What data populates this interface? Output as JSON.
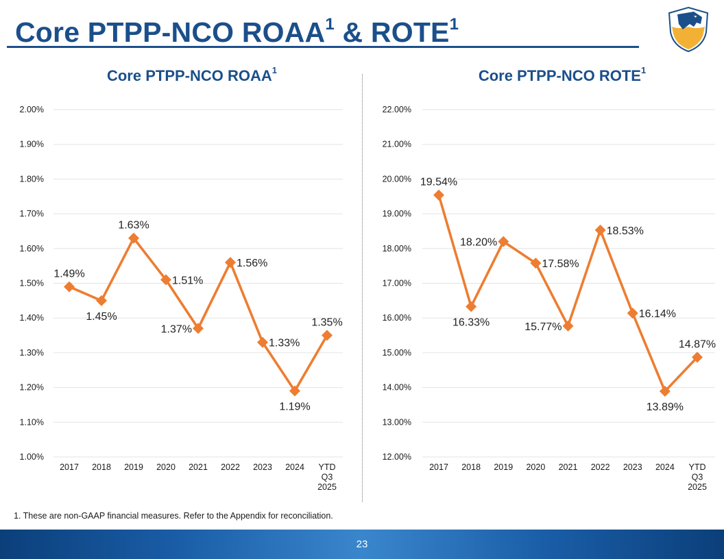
{
  "page": {
    "title": "Core PTPP-NCO ROAA",
    "title_amp": " & ROTE",
    "footnote_mark": "1",
    "footnote": "1. These are non-GAAP financial measures. Refer to the Appendix for reconciliation.",
    "page_number": "23"
  },
  "colors": {
    "brand_blue": "#1b4f8a",
    "series_orange": "#ed7d31",
    "gridline": "#e3e3e3",
    "logo_gold": "#f2b134",
    "logo_blue": "#1b4f8a"
  },
  "chart_data": [
    {
      "type": "line",
      "title": "Core PTPP-NCO ROAA",
      "title_mark": "1",
      "categories": [
        "2017",
        "2018",
        "2019",
        "2020",
        "2021",
        "2022",
        "2023",
        "2024",
        "YTD Q3 2025"
      ],
      "category_lines": [
        [
          "2017"
        ],
        [
          "2018"
        ],
        [
          "2019"
        ],
        [
          "2020"
        ],
        [
          "2021"
        ],
        [
          "2022"
        ],
        [
          "2023"
        ],
        [
          "2024"
        ],
        [
          "YTD",
          "Q3",
          "2025"
        ]
      ],
      "values": [
        1.49,
        1.45,
        1.63,
        1.51,
        1.37,
        1.56,
        1.33,
        1.19,
        1.35
      ],
      "data_labels": [
        "1.49%",
        "1.45%",
        "1.63%",
        "1.51%",
        "1.37%",
        "1.56%",
        "1.33%",
        "1.19%",
        "1.35%"
      ],
      "label_positions": [
        "above",
        "below",
        "above",
        "right",
        "left",
        "right",
        "right",
        "below",
        "above"
      ],
      "ylim": [
        1.0,
        2.0
      ],
      "yticks": [
        1.0,
        1.1,
        1.2,
        1.3,
        1.4,
        1.5,
        1.6,
        1.7,
        1.8,
        1.9,
        2.0
      ],
      "ytick_labels": [
        "1.00%",
        "1.10%",
        "1.20%",
        "1.30%",
        "1.40%",
        "1.50%",
        "1.60%",
        "1.70%",
        "1.80%",
        "1.90%",
        "2.00%"
      ],
      "grid": true,
      "marker": "diamond"
    },
    {
      "type": "line",
      "title": "Core PTPP-NCO ROTE",
      "title_mark": "1",
      "categories": [
        "2017",
        "2018",
        "2019",
        "2020",
        "2021",
        "2022",
        "2023",
        "2024",
        "YTD Q3 2025"
      ],
      "category_lines": [
        [
          "2017"
        ],
        [
          "2018"
        ],
        [
          "2019"
        ],
        [
          "2020"
        ],
        [
          "2021"
        ],
        [
          "2022"
        ],
        [
          "2023"
        ],
        [
          "2024"
        ],
        [
          "YTD",
          "Q3",
          "2025"
        ]
      ],
      "values": [
        19.54,
        16.33,
        18.2,
        17.58,
        15.77,
        18.53,
        16.14,
        13.89,
        14.87
      ],
      "data_labels": [
        "19.54%",
        "16.33%",
        "18.20%",
        "17.58%",
        "15.77%",
        "18.53%",
        "16.14%",
        "13.89%",
        "14.87%"
      ],
      "label_positions": [
        "above",
        "below",
        "left",
        "right",
        "left",
        "right",
        "right",
        "below",
        "above"
      ],
      "ylim": [
        12.0,
        22.0
      ],
      "yticks": [
        12,
        13,
        14,
        15,
        16,
        17,
        18,
        19,
        20,
        21,
        22
      ],
      "ytick_labels": [
        "12.00%",
        "13.00%",
        "14.00%",
        "15.00%",
        "16.00%",
        "17.00%",
        "18.00%",
        "19.00%",
        "20.00%",
        "21.00%",
        "22.00%"
      ],
      "grid": true,
      "marker": "diamond"
    }
  ]
}
